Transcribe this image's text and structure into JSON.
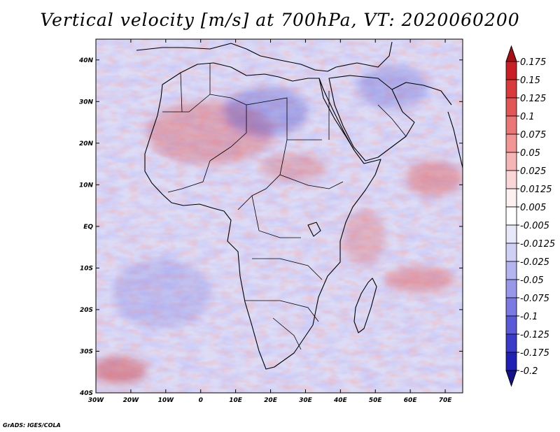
{
  "title": "Vertical velocity [m/s] at 700hPa, VT: 2020060200",
  "credit": "GrADS: IGES/COLA",
  "map": {
    "lon_range": [
      -30,
      75
    ],
    "lat_range": [
      -40,
      45
    ],
    "lon_ticks": [
      -30,
      -20,
      -10,
      0,
      10,
      20,
      30,
      40,
      50,
      60,
      70
    ],
    "lon_labels": [
      "30W",
      "20W",
      "10W",
      "0",
      "10E",
      "20E",
      "30E",
      "40E",
      "50E",
      "60E",
      "70E"
    ],
    "lat_ticks": [
      40,
      30,
      20,
      10,
      0,
      -10,
      -20,
      -30,
      -40
    ],
    "lat_labels": [
      "40N",
      "30N",
      "20N",
      "10N",
      "EQ",
      "10S",
      "20S",
      "30S",
      "40S"
    ]
  },
  "colorbar": {
    "levels": [
      "0.175",
      "0.15",
      "0.125",
      "0.1",
      "0.075",
      "0.05",
      "0.025",
      "0.0125",
      "0.005",
      "-0.005",
      "-0.0125",
      "-0.025",
      "-0.05",
      "-0.075",
      "-0.1",
      "-0.125",
      "-0.175",
      "-0.2"
    ],
    "colors": [
      "#a50f15",
      "#c81e24",
      "#d93a3a",
      "#e35656",
      "#eb7676",
      "#f19595",
      "#f6b6b6",
      "#fad6d6",
      "#fdf0f0",
      "#ffffff",
      "#e8e8fb",
      "#d0d0f6",
      "#b4b4f0",
      "#9898ea",
      "#7a7ae2",
      "#5a5ad8",
      "#3a3acb",
      "#2020b4",
      "#12128f"
    ]
  }
}
